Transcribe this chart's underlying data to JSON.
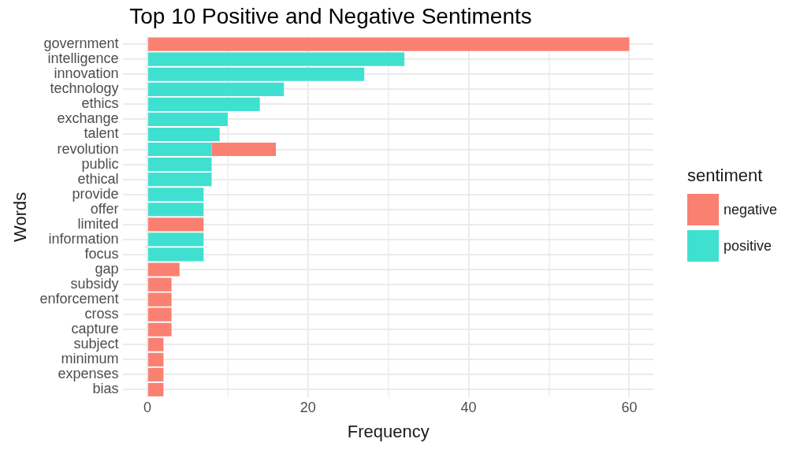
{
  "chart_data": {
    "type": "bar",
    "orientation": "horizontal",
    "stacked": true,
    "title": "Top 10 Positive and Negative Sentiments",
    "xlabel": "Frequency",
    "ylabel": "Words",
    "legend_title": "sentiment",
    "legend": "right",
    "categories": [
      "government",
      "intelligence",
      "innovation",
      "technology",
      "ethics",
      "exchange",
      "talent",
      "revolution",
      "public",
      "ethical",
      "provide",
      "offer",
      "limited",
      "information",
      "focus",
      "gap",
      "subsidy",
      "enforcement",
      "cross",
      "capture",
      "subject",
      "minimum",
      "expenses",
      "bias"
    ],
    "series": [
      {
        "name": "positive",
        "color": "#40e0d0",
        "values": [
          null,
          32,
          27,
          17,
          14,
          10,
          9,
          8,
          8,
          8,
          7,
          7,
          null,
          7,
          7,
          null,
          null,
          null,
          null,
          null,
          null,
          null,
          null,
          null
        ]
      },
      {
        "name": "negative",
        "color": "#fa8072",
        "values": [
          60,
          null,
          null,
          null,
          null,
          null,
          null,
          8,
          null,
          null,
          null,
          null,
          7,
          null,
          null,
          4,
          3,
          3,
          3,
          3,
          2,
          2,
          2,
          2
        ]
      }
    ],
    "xlim": [
      -3,
      63
    ],
    "xticks": [
      0,
      {
        "value": 10,
        "label": null
      },
      20,
      {
        "value": 30,
        "label": null
      },
      40,
      {
        "value": 50,
        "label": null
      },
      60
    ],
    "grid": true
  }
}
